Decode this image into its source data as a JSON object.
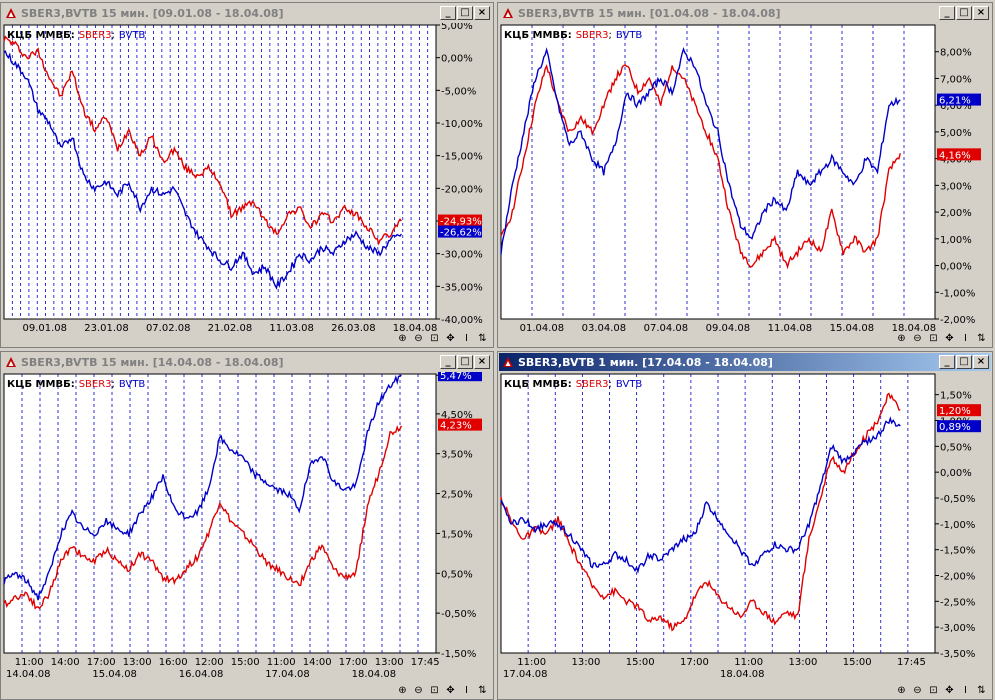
{
  "windows": [
    {
      "title": "SBER3,BVTB  15 мин. [09.01.08 - 18.04.08]",
      "active": false
    },
    {
      "title": "SBER3,BVTB  15 мин. [01.04.08 - 18.04.08]",
      "active": false
    },
    {
      "title": "SBER3,BVTB  15 мин. [14.04.08 - 18.04.08]",
      "active": false
    },
    {
      "title": "SBER3,BVTB  1 мин. [17.04.08 - 18.04.08]",
      "active": true
    }
  ],
  "legend": {
    "prefix": "КЦБ ММВБ:",
    "s1": "SBER3",
    "sep": ";",
    "s2": "BVTB"
  },
  "window_buttons": {
    "minimize": "_",
    "maximize": "□",
    "close": "×"
  },
  "toolbar_icons": [
    "zoom-in-icon",
    "zoom-out-icon",
    "fit-icon",
    "move-icon",
    "cursor-icon",
    "refresh-icon"
  ],
  "colors": {
    "sber": "#e00000",
    "bvtb": "#0000c8",
    "grid": "#0000c8"
  },
  "chart_data": [
    {
      "type": "line",
      "ylim": [
        -40,
        5
      ],
      "yticks": [
        "5,00%",
        "0,00%",
        "-5,00%",
        "-10,00%",
        "-15,00%",
        "-20,00%",
        "-25,00%",
        "-30,00%",
        "-35,00%",
        "-40,00%"
      ],
      "xticks": [
        "09.01.08",
        "23.01.08",
        "07.02.08",
        "21.02.08",
        "11.03.08",
        "26.03.08",
        "18.04.08"
      ],
      "last_values": {
        "sber": "-24,93%",
        "bvtb": "-26,62%"
      },
      "series": [
        {
          "name": "SBER3",
          "values": [
            3,
            2,
            0,
            1,
            -3,
            -6,
            -2,
            -8,
            -11,
            -9,
            -14,
            -11,
            -15,
            -12,
            -16,
            -14,
            -17,
            -18,
            -17,
            -19,
            -24,
            -23,
            -22,
            -25,
            -27,
            -24,
            -23,
            -26,
            -24,
            -25,
            -23,
            -24,
            -26,
            -28,
            -27,
            -25
          ]
        },
        {
          "name": "BVTB",
          "values": [
            1,
            -1,
            -3,
            -8,
            -10,
            -14,
            -12,
            -18,
            -20,
            -19,
            -21,
            -19,
            -23,
            -20,
            -21,
            -20,
            -24,
            -27,
            -29,
            -31,
            -32,
            -30,
            -33,
            -32,
            -35,
            -33,
            -30,
            -31,
            -29,
            -30,
            -28,
            -27,
            -29,
            -30,
            -28,
            -27
          ]
        }
      ]
    },
    {
      "type": "line",
      "ylim": [
        -2,
        9
      ],
      "yticks": [
        "8,00%",
        "7,00%",
        "6,00%",
        "5,00%",
        "4,00%",
        "3,00%",
        "2,00%",
        "1,00%",
        "0,00%",
        "-1,00%",
        "-2,00%"
      ],
      "xticks": [
        "01.04.08",
        "03.04.08",
        "07.04.08",
        "09.04.08",
        "11.04.08",
        "15.04.08",
        "18.04.08"
      ],
      "last_values": {
        "sber": "4,16%",
        "bvtb": "6,21%"
      },
      "series": [
        {
          "name": "SBER3",
          "values": [
            1,
            2,
            4,
            6,
            7.5,
            6,
            5,
            5.5,
            5,
            6,
            7,
            7.5,
            6.5,
            7,
            6,
            7.5,
            7,
            6,
            5,
            4,
            2,
            0.5,
            0,
            0.5,
            1,
            0,
            0.5,
            1,
            0.5,
            2,
            0.5,
            1,
            0.5,
            1,
            3.5,
            4.2
          ]
        },
        {
          "name": "BVTB",
          "values": [
            0.5,
            3,
            5,
            7,
            8,
            6,
            4.5,
            5,
            4,
            3.5,
            4.5,
            6.5,
            6,
            6.5,
            7,
            6.5,
            8,
            7.5,
            6,
            5,
            3,
            1.5,
            1,
            2,
            2.5,
            2,
            3.5,
            3,
            3.5,
            4,
            3.5,
            3,
            4,
            3.5,
            6,
            6.2
          ]
        }
      ]
    },
    {
      "type": "line",
      "ylim": [
        -1.5,
        5.5
      ],
      "yticks": [
        "5,47%",
        "4,50%",
        "3,50%",
        "2,50%",
        "1,50%",
        "0,50%",
        "-0,50%",
        "-1,50%"
      ],
      "xticks": [
        "11:00",
        "14:00",
        "17:00",
        "13:00",
        "16:00",
        "12:00",
        "15:00",
        "11:00",
        "14:00",
        "17:00",
        "13:00",
        "17:45"
      ],
      "xdates": [
        "14.04.08",
        "15.04.08",
        "16.04.08",
        "17.04.08",
        "18.04.08"
      ],
      "last_values": {
        "sber": "4,23%",
        "bvtb": "5,47%"
      },
      "series": [
        {
          "name": "SBER3",
          "values": [
            -0.3,
            -0.1,
            0,
            -0.4,
            0,
            0.8,
            1.2,
            0.9,
            0.8,
            1.1,
            0.8,
            0.6,
            1,
            0.8,
            0.4,
            0.3,
            0.6,
            0.9,
            1.5,
            2.3,
            1.8,
            1.5,
            1.2,
            0.8,
            0.6,
            0.4,
            0.2,
            0.8,
            1.2,
            0.6,
            0.4,
            0.5,
            2.2,
            3,
            4,
            4.2
          ]
        },
        {
          "name": "BVTB",
          "values": [
            0.3,
            0.5,
            0.3,
            -0.1,
            0.5,
            1.5,
            2,
            1.6,
            1.5,
            1.8,
            1.6,
            1.5,
            2,
            2.4,
            2.9,
            2.1,
            1.9,
            2,
            2.6,
            3.9,
            3.6,
            3.4,
            3,
            2.8,
            2.6,
            2.5,
            2.1,
            3.2,
            3.5,
            2.8,
            2.6,
            2.7,
            4,
            4.8,
            5.2,
            5.47
          ]
        }
      ]
    },
    {
      "type": "line",
      "ylim": [
        -3.5,
        1.9
      ],
      "yticks": [
        "1,50%",
        "1,00%",
        "0,50%",
        "0,00%",
        "-0,50%",
        "-1,00%",
        "-1,50%",
        "-2,00%",
        "-2,50%",
        "-3,00%",
        "-3,50%"
      ],
      "xticks": [
        "11:00",
        "13:00",
        "15:00",
        "17:00",
        "11:00",
        "13:00",
        "15:00",
        "17:45"
      ],
      "xdates": [
        "17.04.08",
        "18.04.08"
      ],
      "last_values": {
        "sber": "1,20%",
        "bvtb": "0,89%"
      },
      "series": [
        {
          "name": "SBER3",
          "values": [
            -0.5,
            -1,
            -1.3,
            -1.1,
            -1.2,
            -0.9,
            -1.4,
            -1.8,
            -2.2,
            -2.4,
            -2.3,
            -2.5,
            -2.6,
            -2.9,
            -2.8,
            -3,
            -2.9,
            -2.4,
            -2.1,
            -2.4,
            -2.6,
            -2.8,
            -2.5,
            -2.7,
            -2.9,
            -2.7,
            -2.8,
            -1.3,
            -0.5,
            0.3,
            0,
            0.4,
            0.7,
            1,
            1.5,
            1.2
          ]
        },
        {
          "name": "BVTB",
          "values": [
            -0.6,
            -1,
            -0.9,
            -1.1,
            -1,
            -1,
            -1.2,
            -1.5,
            -1.8,
            -1.8,
            -1.6,
            -1.7,
            -1.9,
            -1.6,
            -1.7,
            -1.5,
            -1.3,
            -1.2,
            -0.6,
            -0.9,
            -1.2,
            -1.5,
            -1.8,
            -1.6,
            -1.4,
            -1.5,
            -1.5,
            -1,
            -0.3,
            0.5,
            0.2,
            0.4,
            0.6,
            0.7,
            1,
            0.89
          ]
        }
      ]
    }
  ]
}
